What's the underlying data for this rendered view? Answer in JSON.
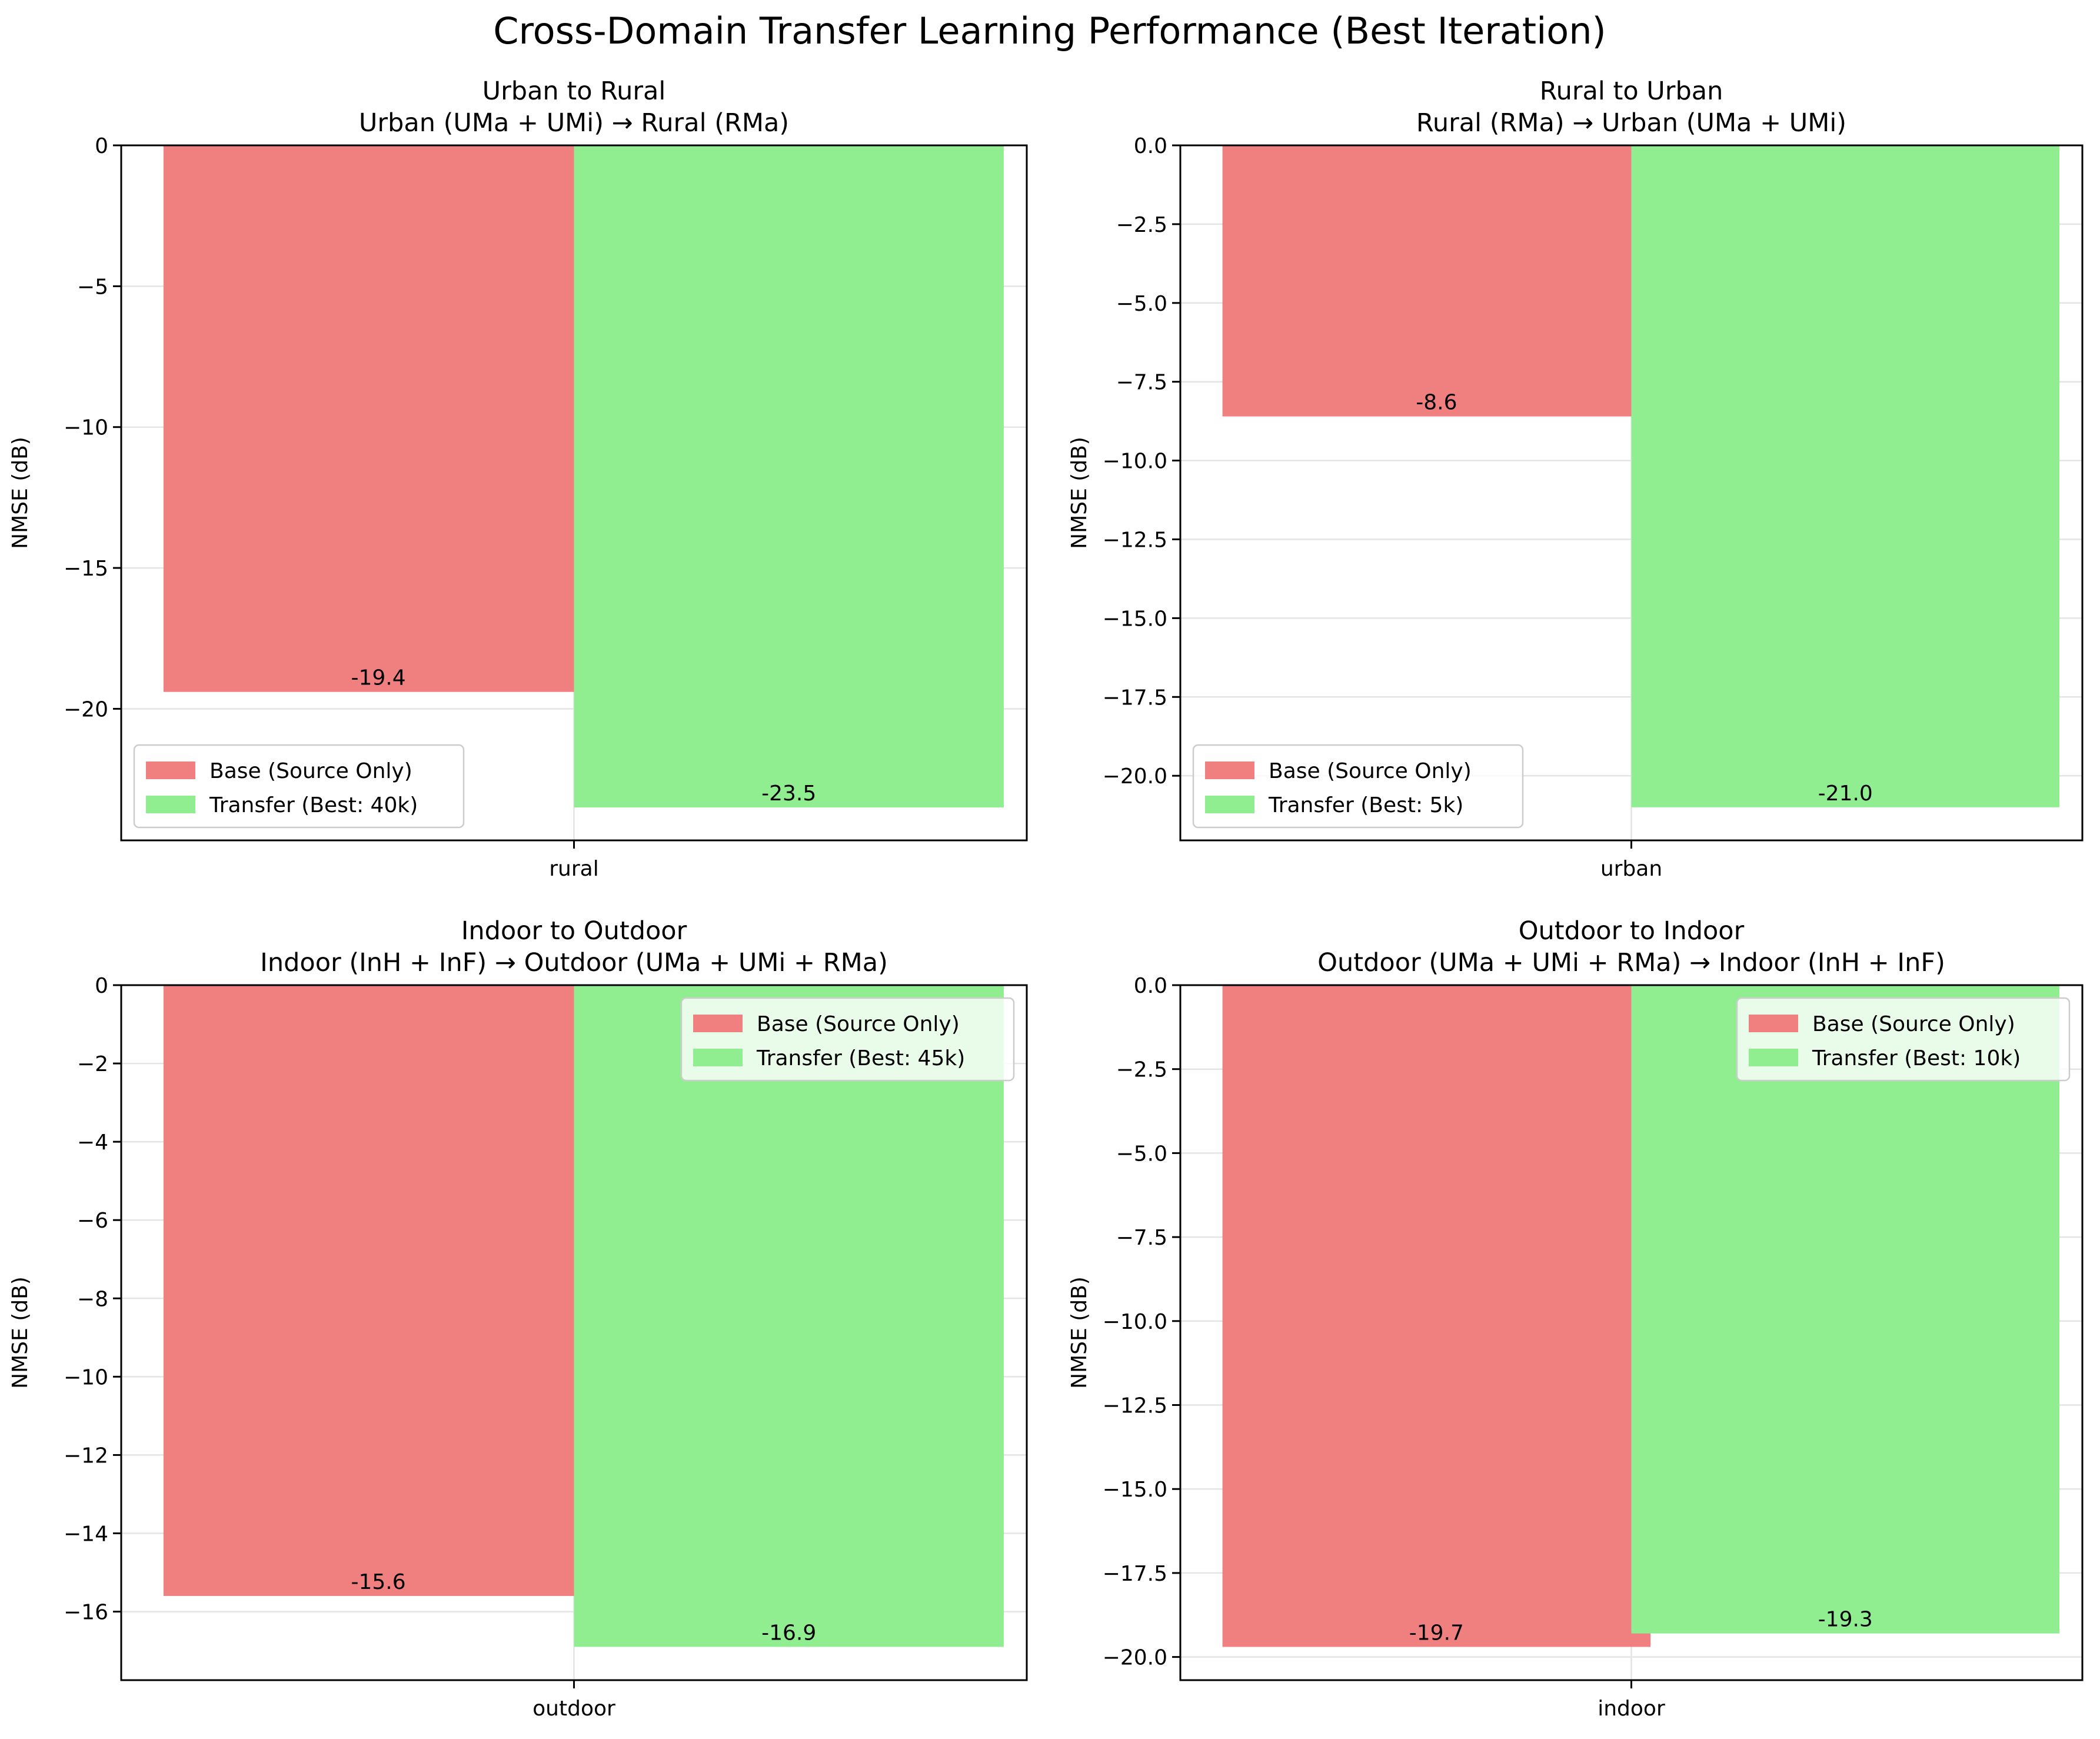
{
  "suptitle": "Cross-Domain Transfer Learning Performance (Best Iteration)",
  "colors": {
    "base": "#f08080",
    "transfer": "#90ee90",
    "grid": "#e4e4e4",
    "axis": "#000000"
  },
  "chart_data": [
    {
      "type": "bar",
      "title": "Urban to Rural",
      "subtitle": "Urban (UMa + UMi) → Rural (RMa)",
      "categories": [
        "rural"
      ],
      "ylabel": "NMSE (dB)",
      "ylim": [
        -24.67,
        0
      ],
      "yticks": [
        0,
        -5,
        -10,
        -15,
        -20
      ],
      "ytick_labels": [
        "0",
        "−5",
        "−10",
        "−15",
        "−20"
      ],
      "grid": true,
      "legend_position": "lower-left",
      "series": [
        {
          "name": "Base (Source Only)",
          "values": [
            -19.4
          ],
          "label": "-19.4"
        },
        {
          "name": "Transfer (Best: 40k)",
          "values": [
            -23.5
          ],
          "label": "-23.5"
        }
      ]
    },
    {
      "type": "bar",
      "title": "Rural to Urban",
      "subtitle": "Rural (RMa) → Urban (UMa + UMi)",
      "categories": [
        "urban"
      ],
      "ylabel": "NMSE (dB)",
      "ylim": [
        -22.05,
        0
      ],
      "yticks": [
        0,
        -2.5,
        -5,
        -7.5,
        -10,
        -12.5,
        -15,
        -17.5,
        -20
      ],
      "ytick_labels": [
        "0.0",
        "−2.5",
        "−5.0",
        "−7.5",
        "−10.0",
        "−12.5",
        "−15.0",
        "−17.5",
        "−20.0"
      ],
      "grid": true,
      "legend_position": "lower-left",
      "series": [
        {
          "name": "Base (Source Only)",
          "values": [
            -8.6
          ],
          "label": "-8.6"
        },
        {
          "name": "Transfer (Best: 5k)",
          "values": [
            -21.0
          ],
          "label": "-21.0"
        }
      ]
    },
    {
      "type": "bar",
      "title": "Indoor to Outdoor",
      "subtitle": "Indoor (InH + InF) → Outdoor (UMa + UMi + RMa)",
      "categories": [
        "outdoor"
      ],
      "ylabel": "NMSE (dB)",
      "ylim": [
        -17.75,
        0
      ],
      "yticks": [
        0,
        -2,
        -4,
        -6,
        -8,
        -10,
        -12,
        -14,
        -16
      ],
      "ytick_labels": [
        "0",
        "−2",
        "−4",
        "−6",
        "−8",
        "−10",
        "−12",
        "−14",
        "−16"
      ],
      "grid": true,
      "legend_position": "upper-right",
      "series": [
        {
          "name": "Base (Source Only)",
          "values": [
            -15.6
          ],
          "label": "-15.6"
        },
        {
          "name": "Transfer (Best: 45k)",
          "values": [
            -16.9
          ],
          "label": "-16.9"
        }
      ]
    },
    {
      "type": "bar",
      "title": "Outdoor to Indoor",
      "subtitle": "Outdoor (UMa + UMi + RMa) → Indoor (InH + InF)",
      "categories": [
        "indoor"
      ],
      "ylabel": "NMSE (dB)",
      "ylim": [
        -20.69,
        0
      ],
      "yticks": [
        0,
        -2.5,
        -5,
        -7.5,
        -10,
        -12.5,
        -15,
        -17.5,
        -20
      ],
      "ytick_labels": [
        "0.0",
        "−2.5",
        "−5.0",
        "−7.5",
        "−10.0",
        "−12.5",
        "−15.0",
        "−17.5",
        "−20.0"
      ],
      "grid": true,
      "legend_position": "upper-right",
      "series": [
        {
          "name": "Base (Source Only)",
          "values": [
            -19.7
          ],
          "label": "-19.7"
        },
        {
          "name": "Transfer (Best: 10k)",
          "values": [
            -19.3
          ],
          "label": "-19.3"
        }
      ]
    }
  ]
}
